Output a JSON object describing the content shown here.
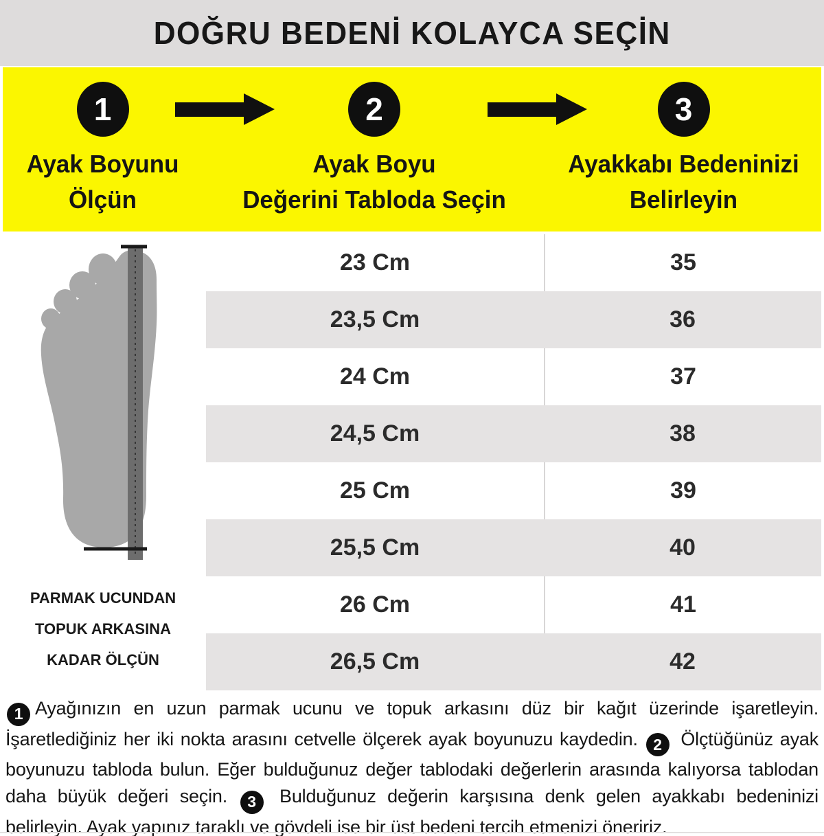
{
  "page": {
    "title": "DOĞRU BEDENİ KOLAYCA SEÇİN"
  },
  "steps": {
    "items": [
      {
        "number": "1",
        "label": "Ayak Boyunu Ölçün",
        "label_line1": "Ayak Boyunu",
        "label_line2": "Ölçün"
      },
      {
        "number": "2",
        "label": "Ayak Boyu Değerini Tabloda Seçin",
        "label_line1": "Ayak Boyu",
        "label_line2": "Değerini Tabloda Seçin"
      },
      {
        "number": "3",
        "label": "Ayakkabı Bedeninizi Belirleyin",
        "label_line1": "Ayakkabı Bedeninizi",
        "label_line2": "Belirleyin"
      }
    ]
  },
  "foot_diagram": {
    "caption_lines": [
      "PARMAK UCUNDAN",
      "TOPUK ARKASINA",
      "KADAR ÖLÇÜN"
    ]
  },
  "size_table": {
    "rows": [
      {
        "length": "23 Cm",
        "size": "35"
      },
      {
        "length": "23,5 Cm",
        "size": "36"
      },
      {
        "length": "24 Cm",
        "size": "37"
      },
      {
        "length": "24,5 Cm",
        "size": "38"
      },
      {
        "length": "25 Cm",
        "size": "39"
      },
      {
        "length": "25,5 Cm",
        "size": "40"
      },
      {
        "length": "26 Cm",
        "size": "41"
      },
      {
        "length": "26,5 Cm",
        "size": "42"
      }
    ]
  },
  "instructions": {
    "segments": [
      {
        "badge": "1"
      },
      {
        "text": "Ayağınızın en uzun parmak ucunu ve topuk arkasını düz bir kağıt üzerinde işaretleyin. İşaretlediğiniz her iki nokta arasını cetvelle ölçerek ayak boyunuzu kaydedin. "
      },
      {
        "badge": "2"
      },
      {
        "text": " Ölçtüğünüz ayak boyunuzu tabloda bulun. Eğer bulduğunuz değer tablodaki değerlerin arasında kalıyorsa tablodan daha büyük değeri seçin. "
      },
      {
        "badge": "3"
      },
      {
        "text": " Bulduğunuz değerin karşısına denk gelen ayakkabı bedeninizi belirleyin. Ayak yapınız taraklı ve gövdeli ise bir üst bedeni tercih etmenizi öneririz."
      }
    ]
  },
  "colors": {
    "accent_yellow": "#fbf600",
    "header_gray": "#dedcdc",
    "row_gray": "#e5e3e3",
    "badge_black": "#0f0f0f",
    "foot_gray": "#a8a8a8",
    "ruler_gray": "#6d6d6d"
  }
}
